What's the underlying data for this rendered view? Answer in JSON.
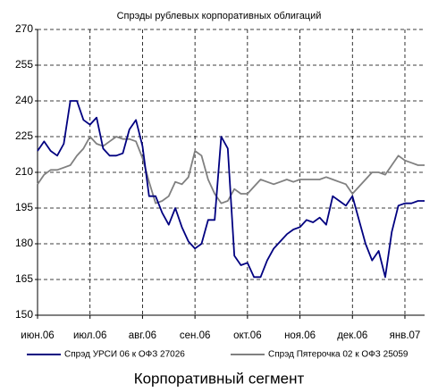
{
  "chart_data": {
    "type": "line",
    "title": "Спрэды рублевых корпоративных облигаций",
    "caption": "Корпоративный сегмент",
    "categories": [
      "июн.06",
      null,
      null,
      null,
      null,
      null,
      null,
      null,
      "июл.06",
      null,
      null,
      null,
      null,
      null,
      null,
      null,
      "авг.06",
      null,
      null,
      null,
      null,
      null,
      null,
      null,
      "сен.06",
      null,
      null,
      null,
      null,
      null,
      null,
      null,
      "окт.06",
      null,
      null,
      null,
      null,
      null,
      null,
      null,
      "ноя.06",
      null,
      null,
      null,
      null,
      null,
      null,
      null,
      "дек.06",
      null,
      null,
      null,
      null,
      null,
      null,
      null,
      "янв.07",
      null,
      null,
      null
    ],
    "series": [
      {
        "name": "Спрэд УРСИ 06 к ОФЗ 27026",
        "color": "#000080",
        "values": [
          219,
          223,
          219,
          217,
          222,
          240,
          240,
          232,
          230,
          233,
          220,
          217,
          217,
          218,
          228,
          232,
          221,
          200,
          200,
          193,
          188,
          195,
          187,
          181,
          178,
          180,
          190,
          190,
          225,
          220,
          175,
          171,
          172,
          166,
          166,
          173,
          178,
          181,
          184,
          186,
          187,
          190,
          189,
          191,
          188,
          200,
          198,
          196,
          200,
          190,
          180,
          173,
          177,
          166,
          185,
          196,
          197,
          197,
          198,
          198
        ]
      },
      {
        "name": "Спрэд Пятерочка 02 к ОФЗ 25059",
        "color": "#808080",
        "values": [
          205,
          209,
          211,
          211,
          212,
          213,
          217,
          220,
          225,
          222,
          221,
          223,
          225,
          224,
          224,
          223,
          216,
          206,
          197,
          198,
          200,
          206,
          205,
          208,
          219,
          217,
          207,
          201,
          197,
          198,
          203,
          201,
          201,
          204,
          207,
          206,
          205,
          206,
          207,
          206,
          207,
          207,
          207,
          207,
          208,
          207,
          206,
          205,
          201,
          204,
          207,
          210,
          210,
          209,
          213,
          217,
          215,
          214,
          213,
          213
        ]
      }
    ],
    "ylim": [
      150,
      270
    ],
    "yticks": [
      150,
      165,
      180,
      195,
      210,
      225,
      240,
      255,
      270
    ],
    "grid": true
  }
}
